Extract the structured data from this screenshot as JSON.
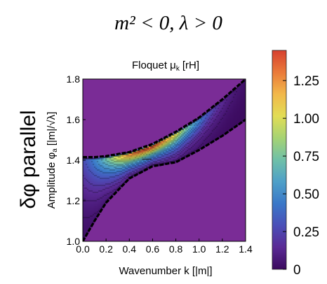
{
  "chart_data": {
    "type": "heatmap",
    "heading": "m² < 0, λ > 0",
    "side_label": "δφ parallel",
    "title": "Floquet  μ",
    "title_sub": "k",
    "title_units": "[rH]",
    "xlabel": "Wavenumber  k [|m|]",
    "ylabel": "Amplitude  φ",
    "ylabel_sub": "a",
    "ylabel_units": "[|m|/√λ]",
    "x_ticks": [
      "0.0",
      "0.2",
      "0.4",
      "0.6",
      "0.8",
      "1.0",
      "1.2",
      "1.4"
    ],
    "y_ticks": [
      "1.0",
      "1.2",
      "1.4",
      "1.6",
      "1.8"
    ],
    "xlim": [
      0.0,
      1.4
    ],
    "ylim": [
      1.0,
      1.8
    ],
    "colorbar": {
      "range": [
        0,
        1.45
      ],
      "ticks": [
        "0",
        "0.25",
        "0.50",
        "0.75",
        "1.00",
        "1.25"
      ]
    },
    "band": {
      "upper_boundary": [
        [
          0.0,
          1.415
        ],
        [
          0.1,
          1.415
        ],
        [
          0.2,
          1.42
        ],
        [
          0.4,
          1.44
        ],
        [
          0.6,
          1.48
        ],
        [
          0.8,
          1.54
        ],
        [
          1.0,
          1.61
        ],
        [
          1.2,
          1.7
        ],
        [
          1.4,
          1.8
        ]
      ],
      "lower_boundary": [
        [
          0.0,
          1.0
        ],
        [
          0.1,
          1.1
        ],
        [
          0.2,
          1.19
        ],
        [
          0.4,
          1.31
        ],
        [
          0.6,
          1.37
        ],
        [
          0.8,
          1.39
        ],
        [
          1.0,
          1.45
        ],
        [
          1.2,
          1.52
        ],
        [
          1.4,
          1.6
        ]
      ],
      "peak": {
        "k": 0.55,
        "phi": 1.405,
        "mu": 1.43
      }
    },
    "outside_value": 0.0
  },
  "colors": {
    "background_region": "#7a2c96",
    "boundary": "#000000",
    "scale": [
      "#3b0a5e",
      "#5a2a95",
      "#4a4fb8",
      "#3a78c8",
      "#4fa0c8",
      "#6fc0a8",
      "#a6d373",
      "#e2dd55",
      "#f2b84a",
      "#ea7a3a",
      "#d7402f"
    ]
  }
}
